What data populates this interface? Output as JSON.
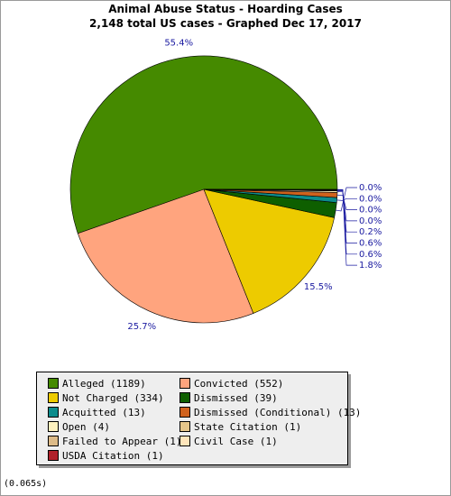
{
  "chart_data": {
    "type": "pie",
    "title": "Animal Abuse Status - Hoarding Cases",
    "subtitle": "2,148 total US cases - Graphed Dec 17, 2017",
    "slices": [
      {
        "label": "Alleged",
        "value": 1189,
        "pct_label": "55.4%",
        "color": "#458a00"
      },
      {
        "label": "Convicted",
        "value": 552,
        "pct_label": "25.7%",
        "color": "#ffa47e"
      },
      {
        "label": "Not Charged",
        "value": 334,
        "pct_label": "15.5%",
        "color": "#edcb00"
      },
      {
        "label": "Dismissed",
        "value": 39,
        "pct_label": "1.8%",
        "color": "#0e5f00"
      },
      {
        "label": "Acquitted",
        "value": 13,
        "pct_label": "0.6%",
        "color": "#0c8c8c"
      },
      {
        "label": "Dismissed (Conditional)",
        "value": 13,
        "pct_label": "0.6%",
        "color": "#d0621d"
      },
      {
        "label": "Open",
        "value": 4,
        "pct_label": "0.2%",
        "color": "#fff2bf"
      },
      {
        "label": "State Citation",
        "value": 1,
        "pct_label": "0.0%",
        "color": "#e6c68a"
      },
      {
        "label": "Failed to Appear",
        "value": 1,
        "pct_label": "0.0%",
        "color": "#ddbb88"
      },
      {
        "label": "Civil Case",
        "value": 1,
        "pct_label": "0.0%",
        "color": "#ffe5bb"
      },
      {
        "label": "USDA Citation",
        "value": 1,
        "pct_label": "0.0%",
        "color": "#b0212b"
      }
    ],
    "legend": [
      "Alleged (1189)",
      "Convicted (552)",
      "Not Charged (334)",
      "Dismissed (39)",
      "Acquitted (13)",
      "Dismissed (Conditional) (13)",
      "Open (4)",
      "State Citation (1)",
      "Failed to Appear (1)",
      "Civil Case (1)",
      "USDA Citation (1)"
    ],
    "right_labels": [
      "0.0%",
      "0.0%",
      "0.0%",
      "0.0%",
      "0.2%",
      "0.6%",
      "0.6%",
      "1.8%"
    ],
    "label_color": "#1a1aa0"
  },
  "footer": "(0.065s)"
}
